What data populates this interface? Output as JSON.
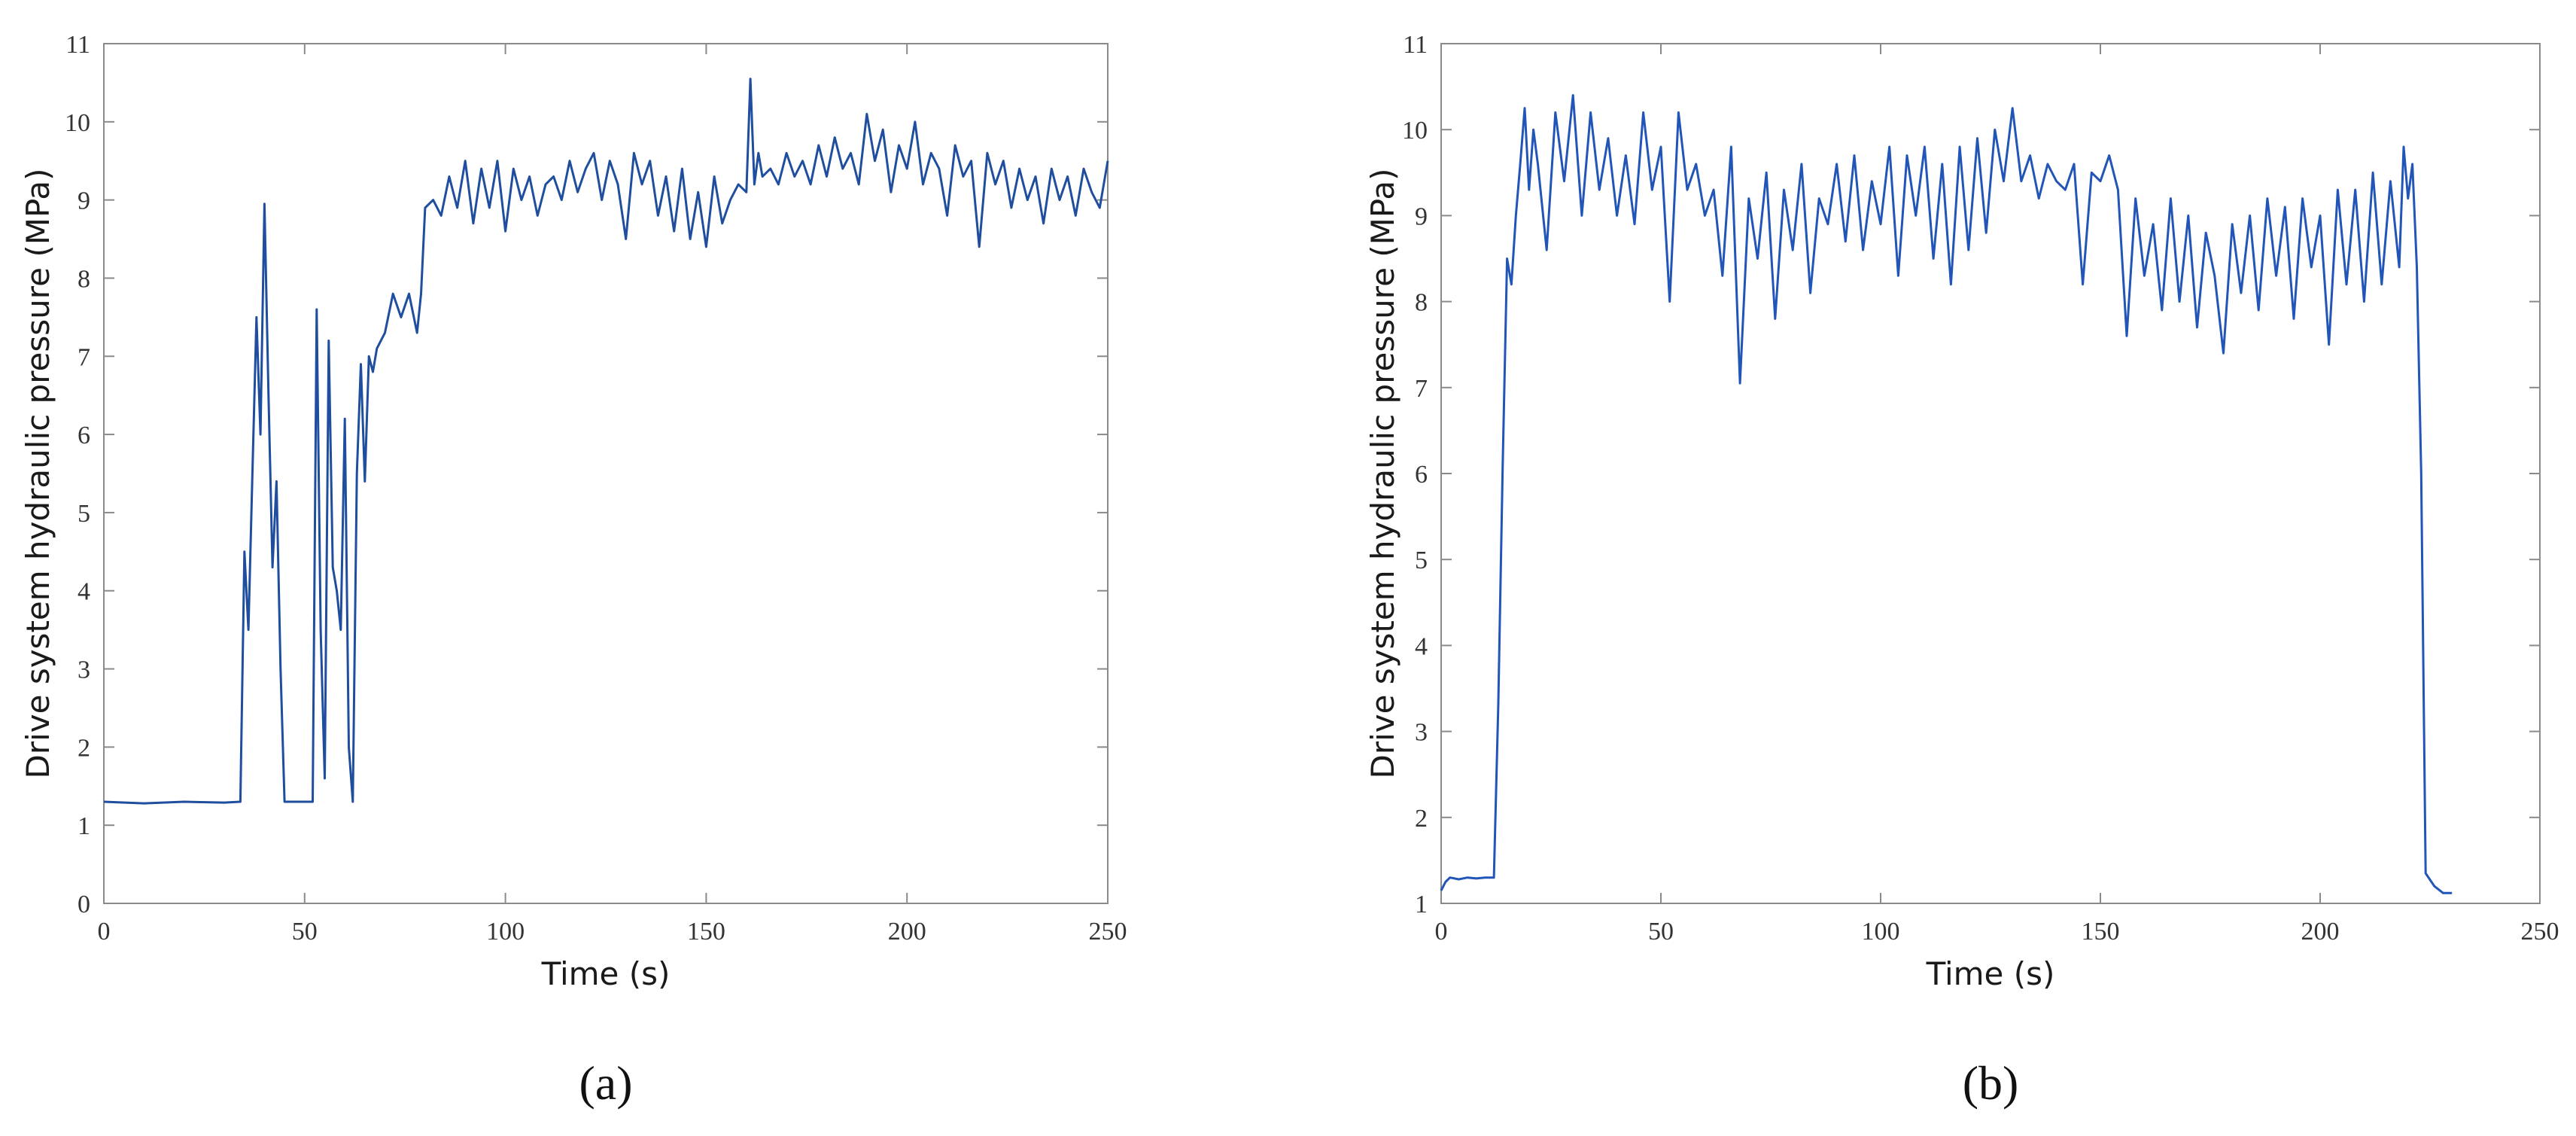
{
  "chart_data": [
    {
      "type": "line",
      "panel_label": "(a)",
      "xlabel": "Time (s)",
      "ylabel": "Drive system hydraulic pressure (MPa)",
      "xlim": [
        0,
        250
      ],
      "ylim": [
        0,
        11
      ],
      "x_ticks": [
        "0",
        "50",
        "100",
        "150",
        "200",
        "250"
      ],
      "y_ticks": [
        "0",
        "1",
        "2",
        "3",
        "4",
        "5",
        "6",
        "7",
        "8",
        "9",
        "10",
        "11"
      ],
      "grid": false,
      "series": [
        {
          "color": "#1f4e9e",
          "x": [
            0,
            10,
            20,
            30,
            34,
            35,
            36,
            37,
            38,
            39,
            40,
            41,
            42,
            43,
            44,
            45,
            48,
            50,
            52,
            53,
            54,
            55,
            56,
            57,
            58,
            59,
            60,
            61,
            62,
            63,
            64,
            65,
            66,
            67,
            68,
            70,
            72,
            74,
            76,
            78,
            79,
            80,
            82,
            84,
            86,
            88,
            90,
            92,
            94,
            96,
            98,
            100,
            102,
            104,
            106,
            108,
            110,
            112,
            114,
            116,
            118,
            120,
            122,
            124,
            126,
            128,
            130,
            132,
            134,
            136,
            138,
            140,
            142,
            144,
            146,
            148,
            150,
            152,
            154,
            156,
            158,
            160,
            161,
            162,
            163,
            164,
            166,
            168,
            170,
            172,
            174,
            176,
            178,
            180,
            182,
            184,
            186,
            188,
            190,
            192,
            194,
            196,
            198,
            200,
            202,
            204,
            206,
            208,
            210,
            212,
            214,
            216,
            218,
            220,
            222,
            224,
            226,
            228,
            230,
            232,
            234,
            236,
            238,
            240,
            242,
            244,
            246,
            248,
            250
          ],
          "values": [
            1.3,
            1.28,
            1.3,
            1.29,
            1.3,
            4.5,
            3.5,
            5.5,
            7.5,
            6.0,
            8.95,
            6.5,
            4.3,
            5.4,
            3.0,
            1.3,
            1.3,
            1.3,
            1.3,
            7.6,
            3.5,
            1.6,
            7.2,
            4.3,
            4.0,
            3.5,
            6.2,
            2.0,
            1.3,
            5.5,
            6.9,
            5.4,
            7.0,
            6.8,
            7.1,
            7.3,
            7.8,
            7.5,
            7.8,
            7.3,
            7.8,
            8.9,
            9.0,
            8.8,
            9.3,
            8.9,
            9.5,
            8.7,
            9.4,
            8.9,
            9.5,
            8.6,
            9.4,
            9.0,
            9.3,
            8.8,
            9.2,
            9.3,
            9.0,
            9.5,
            9.1,
            9.4,
            9.6,
            9.0,
            9.5,
            9.2,
            8.5,
            9.6,
            9.2,
            9.5,
            8.8,
            9.3,
            8.6,
            9.4,
            8.5,
            9.1,
            8.4,
            9.3,
            8.7,
            9.0,
            9.2,
            9.1,
            10.55,
            9.2,
            9.6,
            9.3,
            9.4,
            9.2,
            9.6,
            9.3,
            9.5,
            9.2,
            9.7,
            9.3,
            9.8,
            9.4,
            9.6,
            9.2,
            10.1,
            9.5,
            9.9,
            9.1,
            9.7,
            9.4,
            10.0,
            9.2,
            9.6,
            9.4,
            8.8,
            9.7,
            9.3,
            9.5,
            8.4,
            9.6,
            9.2,
            9.5,
            8.9,
            9.4,
            9.0,
            9.3,
            8.7,
            9.4,
            9.0,
            9.3,
            8.8,
            9.4,
            9.1,
            8.9,
            9.5
          ]
        }
      ]
    },
    {
      "type": "line",
      "panel_label": "(b)",
      "xlabel": "Time (s)",
      "ylabel": "Drive system hydraulic pressure (MPa)",
      "xlim": [
        0,
        250
      ],
      "ylim": [
        1,
        11
      ],
      "x_ticks": [
        "0",
        "50",
        "100",
        "150",
        "200",
        "250"
      ],
      "y_ticks": [
        "1",
        "2",
        "3",
        "4",
        "5",
        "6",
        "7",
        "8",
        "9",
        "10",
        "11"
      ],
      "grid": false,
      "series": [
        {
          "color": "#2155b8",
          "x": [
            0,
            1,
            2,
            4,
            6,
            8,
            10,
            12,
            13,
            14,
            15,
            16,
            17,
            18,
            19,
            20,
            21,
            22,
            24,
            26,
            28,
            30,
            32,
            34,
            36,
            38,
            40,
            42,
            44,
            46,
            48,
            50,
            52,
            54,
            56,
            58,
            60,
            62,
            64,
            66,
            68,
            70,
            72,
            74,
            76,
            78,
            80,
            82,
            84,
            86,
            88,
            90,
            92,
            94,
            96,
            98,
            100,
            102,
            104,
            106,
            108,
            110,
            112,
            114,
            116,
            118,
            120,
            122,
            124,
            126,
            128,
            130,
            132,
            134,
            136,
            138,
            140,
            142,
            144,
            146,
            148,
            150,
            152,
            154,
            156,
            158,
            160,
            162,
            164,
            166,
            168,
            170,
            172,
            174,
            176,
            178,
            180,
            182,
            184,
            186,
            188,
            190,
            192,
            194,
            196,
            198,
            200,
            202,
            204,
            206,
            208,
            210,
            212,
            214,
            216,
            218,
            219,
            220,
            221,
            222,
            223,
            224,
            226,
            228,
            230
          ],
          "values": [
            1.15,
            1.25,
            1.3,
            1.28,
            1.3,
            1.29,
            1.3,
            1.3,
            3.3,
            6.1,
            8.5,
            8.2,
            9.0,
            9.6,
            10.25,
            9.3,
            10.0,
            9.6,
            8.6,
            10.2,
            9.4,
            10.4,
            9.0,
            10.2,
            9.3,
            9.9,
            9.0,
            9.7,
            8.9,
            10.2,
            9.3,
            9.8,
            8.0,
            10.2,
            9.3,
            9.6,
            9.0,
            9.3,
            8.3,
            9.8,
            7.05,
            9.2,
            8.5,
            9.5,
            7.8,
            9.3,
            8.6,
            9.6,
            8.1,
            9.2,
            8.9,
            9.6,
            8.7,
            9.7,
            8.6,
            9.4,
            8.9,
            9.8,
            8.3,
            9.7,
            9.0,
            9.8,
            8.5,
            9.6,
            8.2,
            9.8,
            8.6,
            9.9,
            8.8,
            10.0,
            9.4,
            10.25,
            9.4,
            9.7,
            9.2,
            9.6,
            9.4,
            9.3,
            9.6,
            8.2,
            9.5,
            9.4,
            9.7,
            9.3,
            7.6,
            9.2,
            8.3,
            8.9,
            7.9,
            9.2,
            8.0,
            9.0,
            7.7,
            8.8,
            8.3,
            7.4,
            8.9,
            8.1,
            9.0,
            7.9,
            9.2,
            8.3,
            9.1,
            7.8,
            9.2,
            8.4,
            9.0,
            7.5,
            9.3,
            8.2,
            9.3,
            8.0,
            9.5,
            8.2,
            9.4,
            8.4,
            9.8,
            9.2,
            9.6,
            8.4,
            6.0,
            1.35,
            1.2,
            1.12,
            1.12
          ]
        }
      ]
    }
  ]
}
